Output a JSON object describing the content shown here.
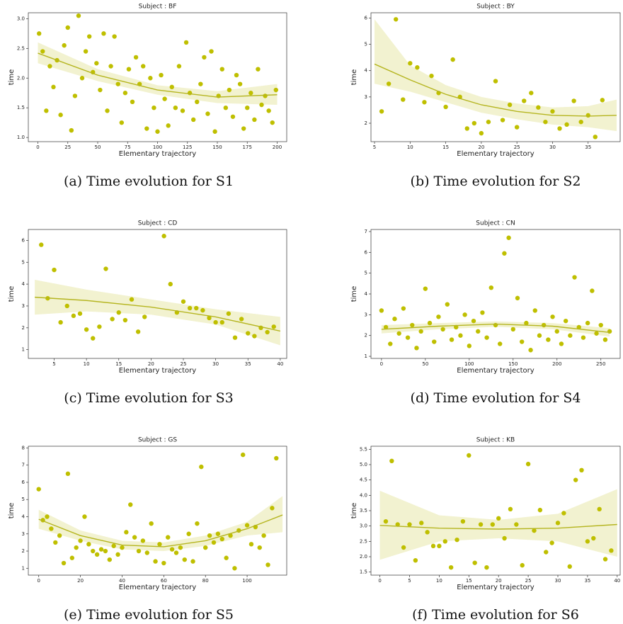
{
  "chart_data": [
    {
      "type": "scatter",
      "title": "Subject : BF",
      "caption": "(a)  Time evolution for S1",
      "x_label": "Elementary trajectory",
      "y_label": "time",
      "color": "#bfbf00",
      "x": [
        1,
        4,
        7,
        10,
        13,
        16,
        19,
        22,
        25,
        28,
        31,
        34,
        37,
        40,
        43,
        46,
        49,
        52,
        55,
        58,
        61,
        64,
        67,
        70,
        73,
        76,
        79,
        82,
        85,
        88,
        91,
        94,
        97,
        100,
        103,
        106,
        109,
        112,
        115,
        118,
        121,
        124,
        127,
        130,
        133,
        136,
        139,
        142,
        145,
        148,
        151,
        154,
        157,
        160,
        163,
        166,
        169,
        172,
        175,
        178,
        181,
        184,
        187,
        190,
        193,
        196,
        199
      ],
      "values": [
        2.75,
        2.45,
        1.45,
        2.2,
        1.85,
        2.3,
        1.38,
        2.55,
        2.85,
        1.12,
        1.7,
        3.05,
        2.0,
        2.45,
        2.7,
        2.1,
        2.25,
        1.8,
        2.75,
        1.45,
        2.2,
        2.7,
        1.9,
        1.25,
        1.75,
        2.15,
        1.6,
        2.35,
        1.9,
        2.2,
        1.15,
        2.0,
        1.5,
        1.1,
        2.05,
        1.65,
        1.2,
        1.85,
        1.5,
        2.2,
        1.45,
        2.6,
        1.75,
        1.3,
        1.6,
        1.9,
        2.35,
        1.4,
        2.45,
        1.1,
        1.7,
        2.15,
        1.5,
        1.8,
        1.35,
        2.05,
        1.9,
        1.15,
        1.5,
        1.75,
        1.3,
        2.15,
        1.55,
        1.7,
        1.45,
        1.25,
        1.8
      ],
      "fit": {
        "x": [
          0,
          50,
          100,
          150,
          200
        ],
        "values": [
          2.42,
          2.05,
          1.8,
          1.68,
          1.72
        ],
        "lower": [
          2.25,
          1.95,
          1.72,
          1.58,
          1.55
        ],
        "upper": [
          2.6,
          2.15,
          1.88,
          1.78,
          1.9
        ],
        "color": "#b5b520",
        "band_color": "#f2f2d0"
      },
      "xlim": [
        -8,
        208
      ],
      "xticks": [
        0,
        25,
        50,
        75,
        100,
        125,
        150,
        175,
        200
      ],
      "ylim": [
        0.93,
        3.1
      ],
      "yticks": [
        {
          "value": 1,
          "label": "1.0"
        },
        1.5,
        {
          "value": 2,
          "label": "2.0"
        },
        2.5,
        {
          "value": 3,
          "label": "3.0"
        }
      ]
    },
    {
      "type": "scatter",
      "title": "Subject : BY",
      "caption": "(b)  Time evolution for S2",
      "x_label": "Elementary trajectory",
      "y_label": "time",
      "color": "#bfbf00",
      "x": [
        6,
        7,
        8,
        9,
        10,
        11,
        12,
        13,
        14,
        15,
        16,
        17,
        18,
        19,
        20,
        21,
        22,
        23,
        24,
        25,
        26,
        27,
        28,
        29,
        30,
        31,
        32,
        33,
        34,
        35,
        36,
        37
      ],
      "values": [
        2.45,
        3.5,
        5.95,
        2.9,
        4.28,
        4.12,
        2.8,
        3.8,
        3.15,
        2.62,
        4.42,
        3.0,
        1.8,
        2.0,
        1.62,
        2.05,
        3.6,
        2.12,
        2.7,
        1.85,
        2.85,
        3.15,
        2.6,
        2.05,
        2.45,
        1.8,
        1.95,
        2.85,
        2.05,
        2.3,
        1.48,
        2.88
      ],
      "fit": {
        "x": [
          5,
          10,
          15,
          20,
          25,
          30,
          35,
          39
        ],
        "values": [
          4.25,
          3.65,
          3.1,
          2.7,
          2.45,
          2.3,
          2.27,
          2.3
        ],
        "lower": [
          3.5,
          3.2,
          2.8,
          2.4,
          2.15,
          1.95,
          1.85,
          1.7
        ],
        "upper": [
          5.95,
          4.2,
          3.45,
          3.0,
          2.75,
          2.6,
          2.65,
          2.9
        ],
        "color": "#b5b520",
        "band_color": "#f2f2d0"
      },
      "xlim": [
        4.5,
        39.5
      ],
      "xticks": [
        5,
        10,
        15,
        20,
        25,
        30,
        35
      ],
      "ylim": [
        1.3,
        6.2
      ],
      "yticks": [
        2,
        3,
        4,
        5,
        6
      ]
    },
    {
      "type": "scatter",
      "title": "Subject : CD",
      "caption": "(c)  Time evolution for S3",
      "x_label": "Elementary trajectory",
      "y_label": "time",
      "color": "#bfbf00",
      "x": [
        3,
        4,
        5,
        6,
        7,
        8,
        9,
        10,
        11,
        12,
        13,
        14,
        15,
        16,
        17,
        18,
        19,
        22,
        23,
        24,
        25,
        26,
        27,
        28,
        29,
        30,
        31,
        32,
        33,
        34,
        35,
        36,
        37,
        38,
        39
      ],
      "values": [
        5.8,
        3.35,
        4.65,
        2.25,
        3.0,
        2.55,
        2.65,
        1.92,
        1.52,
        2.05,
        4.7,
        2.4,
        2.7,
        2.35,
        3.3,
        1.82,
        2.5,
        6.2,
        4.0,
        2.7,
        3.2,
        2.9,
        2.9,
        2.8,
        2.45,
        2.25,
        2.25,
        2.65,
        1.55,
        2.4,
        1.75,
        1.62,
        2.0,
        1.8,
        2.05
      ],
      "fit": {
        "x": [
          2,
          10,
          20,
          30,
          40
        ],
        "values": [
          3.4,
          3.25,
          2.95,
          2.5,
          1.85
        ],
        "lower": [
          2.6,
          2.75,
          2.6,
          2.15,
          1.2
        ],
        "upper": [
          4.2,
          3.75,
          3.3,
          2.85,
          2.5
        ],
        "color": "#b5b520",
        "band_color": "#f2f2d0"
      },
      "xlim": [
        1,
        41
      ],
      "xticks": [
        5,
        10,
        15,
        20,
        25,
        30,
        35,
        40
      ],
      "ylim": [
        0.6,
        6.5
      ],
      "yticks": [
        1,
        2,
        3,
        4,
        5,
        6
      ]
    },
    {
      "type": "scatter",
      "title": "Subject : CN",
      "caption": "(d)  Time evolution for S4",
      "x_label": "Elementary trajectory",
      "y_label": "time",
      "color": "#bfbf00",
      "x": [
        0,
        5,
        10,
        15,
        20,
        25,
        30,
        35,
        40,
        45,
        50,
        55,
        60,
        65,
        70,
        75,
        80,
        85,
        90,
        95,
        100,
        105,
        110,
        115,
        120,
        125,
        130,
        135,
        140,
        145,
        150,
        155,
        160,
        165,
        170,
        175,
        180,
        185,
        190,
        195,
        200,
        205,
        210,
        215,
        220,
        225,
        230,
        235,
        240,
        245,
        250,
        255,
        260
      ],
      "values": [
        3.2,
        2.4,
        1.6,
        2.8,
        2.1,
        3.3,
        1.9,
        2.5,
        1.4,
        2.2,
        4.25,
        2.6,
        1.7,
        2.9,
        2.3,
        3.5,
        1.8,
        2.4,
        2.0,
        3.0,
        1.5,
        2.7,
        2.2,
        3.1,
        1.9,
        4.3,
        2.5,
        1.6,
        5.95,
        6.7,
        2.3,
        3.8,
        1.7,
        2.6,
        1.3,
        3.2,
        2.0,
        2.5,
        1.8,
        2.9,
        2.2,
        1.6,
        2.7,
        2.0,
        4.8,
        2.4,
        1.9,
        2.6,
        4.15,
        2.1,
        2.5,
        1.8,
        2.2
      ],
      "fit": {
        "x": [
          0,
          65,
          130,
          195,
          260
        ],
        "values": [
          2.3,
          2.45,
          2.55,
          2.45,
          2.15
        ],
        "lower": [
          2.1,
          2.3,
          2.42,
          2.3,
          1.95
        ],
        "upper": [
          2.5,
          2.6,
          2.68,
          2.6,
          2.35
        ],
        "color": "#b5b520",
        "band_color": "#f2f2d0"
      },
      "xlim": [
        -12,
        272
      ],
      "xticks": [
        0,
        50,
        100,
        150,
        200,
        250
      ],
      "ylim": [
        0.9,
        7.1
      ],
      "yticks": [
        1,
        2,
        3,
        4,
        5,
        6,
        7
      ]
    },
    {
      "type": "scatter",
      "title": "Subject : GS",
      "caption": "(e)  Time evolution for S5",
      "x_label": "Elementary trajectory",
      "y_label": "time",
      "color": "#bfbf00",
      "x": [
        0,
        2,
        4,
        6,
        8,
        10,
        12,
        14,
        16,
        18,
        20,
        22,
        24,
        26,
        28,
        30,
        32,
        34,
        36,
        38,
        40,
        42,
        44,
        46,
        48,
        50,
        52,
        54,
        56,
        58,
        60,
        62,
        64,
        66,
        68,
        70,
        72,
        74,
        76,
        78,
        80,
        82,
        84,
        86,
        88,
        90,
        92,
        94,
        96,
        98,
        100,
        102,
        104,
        106,
        108,
        110,
        112,
        114
      ],
      "values": [
        5.6,
        3.8,
        4.0,
        3.3,
        2.5,
        2.9,
        1.3,
        6.5,
        1.6,
        2.2,
        2.6,
        4.0,
        2.4,
        2.0,
        1.8,
        2.1,
        2.0,
        1.5,
        2.3,
        1.8,
        2.2,
        3.1,
        4.7,
        2.8,
        2.0,
        2.6,
        1.9,
        3.6,
        1.4,
        2.4,
        1.3,
        2.8,
        2.1,
        1.9,
        2.2,
        1.5,
        3.0,
        1.4,
        3.6,
        6.9,
        2.2,
        2.9,
        2.5,
        3.0,
        2.7,
        1.6,
        2.9,
        1.0,
        3.2,
        7.6,
        3.5,
        2.4,
        3.4,
        2.2,
        2.9,
        1.2,
        4.5,
        7.4
      ],
      "fit": {
        "x": [
          0,
          20,
          40,
          60,
          80,
          100,
          117
        ],
        "values": [
          3.85,
          2.9,
          2.35,
          2.25,
          2.6,
          3.3,
          4.1
        ],
        "lower": [
          3.3,
          2.6,
          2.1,
          2.0,
          2.3,
          2.9,
          3.1
        ],
        "upper": [
          4.4,
          3.2,
          2.6,
          2.5,
          2.9,
          3.7,
          5.2
        ],
        "color": "#b5b520",
        "band_color": "#f2f2d0"
      },
      "xlim": [
        -5,
        119
      ],
      "xticks": [
        0,
        20,
        40,
        60,
        80,
        100
      ],
      "ylim": [
        0.6,
        8.1
      ],
      "yticks": [
        1,
        2,
        3,
        4,
        5,
        6,
        7,
        8
      ]
    },
    {
      "type": "scatter",
      "title": "Subject : KB",
      "caption": "(f)  Time evolution for S6",
      "x_label": "Elementary trajectory",
      "y_label": "time",
      "color": "#bfbf00",
      "x": [
        1,
        2,
        3,
        4,
        5,
        6,
        7,
        8,
        9,
        10,
        11,
        12,
        13,
        14,
        15,
        16,
        17,
        18,
        19,
        20,
        21,
        22,
        23,
        24,
        25,
        26,
        27,
        28,
        29,
        30,
        31,
        32,
        33,
        34,
        35,
        36,
        37,
        38,
        39
      ],
      "values": [
        3.15,
        5.12,
        3.05,
        2.3,
        3.05,
        1.88,
        3.1,
        2.8,
        2.35,
        2.35,
        2.5,
        1.65,
        2.55,
        3.15,
        5.3,
        1.8,
        3.05,
        1.65,
        3.05,
        3.25,
        2.6,
        3.55,
        3.05,
        1.72,
        5.02,
        2.85,
        3.52,
        2.15,
        2.45,
        3.1,
        3.42,
        1.68,
        4.5,
        4.82,
        2.5,
        2.6,
        3.55,
        1.92,
        2.2
      ],
      "fit": {
        "x": [
          0,
          10,
          20,
          30,
          40
        ],
        "values": [
          3.02,
          2.93,
          2.9,
          2.93,
          3.05
        ],
        "lower": [
          1.9,
          2.5,
          2.6,
          2.5,
          2.0
        ],
        "upper": [
          4.15,
          3.35,
          3.2,
          3.4,
          4.2
        ],
        "color": "#b5b520",
        "band_color": "#f2f2d0"
      },
      "xlim": [
        -1.5,
        40.5
      ],
      "xticks": [
        0,
        5,
        10,
        15,
        20,
        25,
        30,
        35,
        40
      ],
      "ylim": [
        1.4,
        5.6
      ],
      "yticks": [
        1.5,
        {
          "value": 2,
          "label": "2.0"
        },
        2.5,
        {
          "value": 3,
          "label": "3.0"
        },
        3.5,
        {
          "value": 4,
          "label": "4.0"
        },
        4.5,
        {
          "value": 5,
          "label": "5.0"
        },
        5.5
      ]
    }
  ]
}
